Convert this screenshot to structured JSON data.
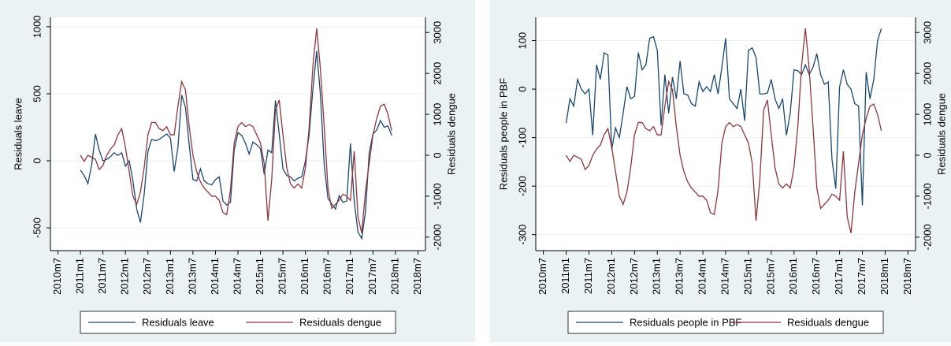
{
  "chart_data": [
    {
      "type": "line",
      "ylabel": "Residuals leave",
      "y2label": "Residuals dengue",
      "x": [
        "2011m1",
        "2011m2",
        "2011m3",
        "2011m4",
        "2011m5",
        "2011m6",
        "2011m7",
        "2011m8",
        "2011m9",
        "2011m10",
        "2011m11",
        "2011m12",
        "2012m1",
        "2012m2",
        "2012m3",
        "2012m4",
        "2012m5",
        "2012m6",
        "2012m7",
        "2012m8",
        "2012m9",
        "2012m10",
        "2012m11",
        "2012m12",
        "2013m1",
        "2013m2",
        "2013m3",
        "2013m4",
        "2013m5",
        "2013m6",
        "2013m7",
        "2013m8",
        "2013m9",
        "2013m10",
        "2013m11",
        "2013m12",
        "2014m1",
        "2014m2",
        "2014m3",
        "2014m4",
        "2014m5",
        "2014m6",
        "2014m7",
        "2014m8",
        "2014m9",
        "2014m10",
        "2014m11",
        "2014m12",
        "2015m1",
        "2015m2",
        "2015m3",
        "2015m4",
        "2015m5",
        "2015m6",
        "2015m7",
        "2015m8",
        "2015m9",
        "2015m10",
        "2015m11",
        "2015m12",
        "2016m1",
        "2016m2",
        "2016m3",
        "2016m4",
        "2016m5",
        "2016m6",
        "2016m7",
        "2016m8",
        "2016m9",
        "2016m10",
        "2016m11",
        "2016m12",
        "2017m1",
        "2017m2",
        "2017m3",
        "2017m4",
        "2017m5",
        "2017m6",
        "2017m7",
        "2017m8",
        "2017m9",
        "2017m10",
        "2017m11",
        "2017m12"
      ],
      "xlim": [
        "2010m5",
        "2018m9"
      ],
      "xticks": [
        "2010m7",
        "2011m1",
        "2011m7",
        "2012m1",
        "2012m7",
        "2013m1",
        "2013m7",
        "2014m1",
        "2014m7",
        "2015m1",
        "2015m7",
        "2016m1",
        "2016m7",
        "2017m1",
        "2017m7",
        "2018m1",
        "2018m7"
      ],
      "ylim": [
        -670,
        1070
      ],
      "yticks": [
        -500,
        0,
        500,
        1000
      ],
      "y2lim": [
        -2330,
        3370
      ],
      "y2ticks": [
        -2000,
        -1000,
        0,
        1000,
        2000,
        3000
      ],
      "series": [
        {
          "name": "Residuals leave",
          "color": "#1a476f",
          "values": [
            -70,
            -110,
            -170,
            -30,
            200,
            80,
            0,
            10,
            30,
            60,
            40,
            60,
            -40,
            0,
            -150,
            -360,
            -460,
            -250,
            70,
            160,
            150,
            160,
            180,
            200,
            170,
            -80,
            100,
            490,
            400,
            120,
            -140,
            -150,
            -60,
            -150,
            -170,
            -180,
            -140,
            -120,
            -300,
            -330,
            -310,
            80,
            210,
            190,
            130,
            50,
            140,
            120,
            90,
            -100,
            80,
            60,
            450,
            200,
            -60,
            -110,
            -120,
            -150,
            -130,
            -120,
            0,
            200,
            540,
            820,
            490,
            -30,
            -280,
            -320,
            -360,
            -260,
            -310,
            -300,
            130,
            -300,
            -530,
            -580,
            -380,
            60,
            200,
            230,
            300,
            250,
            260,
            190
          ]
        },
        {
          "name": "Residuals dengue",
          "color": "#90353b",
          "axis": "y2",
          "values": [
            0,
            -150,
            0,
            -50,
            -100,
            -350,
            -250,
            0,
            150,
            250,
            500,
            650,
            200,
            -400,
            -1000,
            -1200,
            -900,
            -300,
            500,
            800,
            800,
            650,
            600,
            700,
            500,
            500,
            1200,
            1800,
            1600,
            700,
            0,
            -400,
            -650,
            -800,
            -900,
            -1000,
            -1000,
            -1100,
            -1400,
            -1450,
            -850,
            300,
            700,
            800,
            700,
            750,
            700,
            500,
            300,
            -200,
            -1600,
            -600,
            1100,
            1350,
            500,
            -300,
            -700,
            -800,
            -700,
            -800,
            -300,
            700,
            2200,
            3100,
            2100,
            700,
            -800,
            -1300,
            -1200,
            -1100,
            -950,
            -1000,
            -1100,
            100,
            -1500,
            -1900,
            -900,
            -200,
            500,
            900,
            1200,
            1250,
            1000,
            600
          ]
        }
      ]
    },
    {
      "type": "line",
      "ylabel": "Residuals people in PBF",
      "y2label": "Residuals dengue",
      "x": [
        "2011m1",
        "2011m2",
        "2011m3",
        "2011m4",
        "2011m5",
        "2011m6",
        "2011m7",
        "2011m8",
        "2011m9",
        "2011m10",
        "2011m11",
        "2011m12",
        "2012m1",
        "2012m2",
        "2012m3",
        "2012m4",
        "2012m5",
        "2012m6",
        "2012m7",
        "2012m8",
        "2012m9",
        "2012m10",
        "2012m11",
        "2012m12",
        "2013m1",
        "2013m2",
        "2013m3",
        "2013m4",
        "2013m5",
        "2013m6",
        "2013m7",
        "2013m8",
        "2013m9",
        "2013m10",
        "2013m11",
        "2013m12",
        "2014m1",
        "2014m2",
        "2014m3",
        "2014m4",
        "2014m5",
        "2014m6",
        "2014m7",
        "2014m8",
        "2014m9",
        "2014m10",
        "2014m11",
        "2014m12",
        "2015m1",
        "2015m2",
        "2015m3",
        "2015m4",
        "2015m5",
        "2015m6",
        "2015m7",
        "2015m8",
        "2015m9",
        "2015m10",
        "2015m11",
        "2015m12",
        "2016m1",
        "2016m2",
        "2016m3",
        "2016m4",
        "2016m5",
        "2016m6",
        "2016m7",
        "2016m8",
        "2016m9",
        "2016m10",
        "2016m11",
        "2016m12",
        "2017m1",
        "2017m2",
        "2017m3",
        "2017m4",
        "2017m5",
        "2017m6",
        "2017m7",
        "2017m8",
        "2017m9",
        "2017m10",
        "2017m11",
        "2017m12"
      ],
      "xlim": [
        "2010m5",
        "2018m9"
      ],
      "xticks": [
        "2010m7",
        "2011m1",
        "2011m7",
        "2012m1",
        "2012m7",
        "2013m1",
        "2013m7",
        "2014m1",
        "2014m7",
        "2015m1",
        "2015m7",
        "2016m1",
        "2016m7",
        "2017m1",
        "2017m7",
        "2018m1",
        "2018m7"
      ],
      "ylim": [
        -333,
        148
      ],
      "yticks": [
        -300,
        -200,
        -100,
        0,
        100
      ],
      "y2lim": [
        -2330,
        3370
      ],
      "y2ticks": [
        -2000,
        -1000,
        0,
        1000,
        2000,
        3000
      ],
      "series": [
        {
          "name": "Residuals people in PBF",
          "color": "#1a476f",
          "values": [
            -70,
            -20,
            -35,
            20,
            0,
            -10,
            0,
            -95,
            50,
            20,
            75,
            70,
            -125,
            -80,
            -100,
            -50,
            5,
            -20,
            -15,
            75,
            40,
            50,
            105,
            108,
            80,
            -75,
            30,
            -50,
            25,
            -20,
            58,
            -10,
            -12,
            -30,
            -35,
            15,
            -5,
            5,
            -5,
            30,
            -10,
            45,
            105,
            -20,
            -30,
            -40,
            0,
            -65,
            80,
            85,
            65,
            -10,
            -10,
            -8,
            20,
            -20,
            -40,
            -20,
            -95,
            -50,
            40,
            38,
            30,
            50,
            30,
            45,
            73,
            30,
            10,
            15,
            -145,
            -205,
            5,
            40,
            10,
            0,
            -30,
            -35,
            -240,
            35,
            -20,
            20,
            100,
            125
          ]
        },
        {
          "name": "Residuals dengue",
          "color": "#90353b",
          "axis": "y2",
          "values": [
            0,
            -150,
            0,
            -50,
            -100,
            -350,
            -250,
            0,
            150,
            250,
            500,
            650,
            200,
            -400,
            -1000,
            -1200,
            -900,
            -300,
            500,
            800,
            800,
            650,
            600,
            700,
            500,
            500,
            1200,
            1800,
            1600,
            700,
            0,
            -400,
            -650,
            -800,
            -900,
            -1000,
            -1000,
            -1100,
            -1400,
            -1450,
            -850,
            300,
            700,
            800,
            700,
            750,
            700,
            500,
            300,
            -200,
            -1600,
            -600,
            1100,
            1350,
            500,
            -300,
            -700,
            -800,
            -700,
            -800,
            -300,
            700,
            2200,
            3100,
            2100,
            700,
            -800,
            -1300,
            -1200,
            -1100,
            -950,
            -1000,
            -1100,
            100,
            -1500,
            -1900,
            -900,
            -200,
            500,
            900,
            1200,
            1250,
            1000,
            600
          ]
        }
      ]
    }
  ]
}
